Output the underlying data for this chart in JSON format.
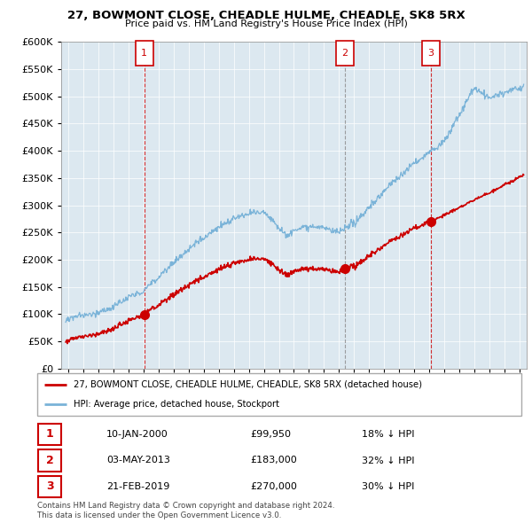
{
  "title": "27, BOWMONT CLOSE, CHEADLE HULME, CHEADLE, SK8 5RX",
  "subtitle": "Price paid vs. HM Land Registry's House Price Index (HPI)",
  "hpi_label": "HPI: Average price, detached house, Stockport",
  "property_label": "27, BOWMONT CLOSE, CHEADLE HULME, CHEADLE, SK8 5RX (detached house)",
  "footnote1": "Contains HM Land Registry data © Crown copyright and database right 2024.",
  "footnote2": "This data is licensed under the Open Government Licence v3.0.",
  "sales": [
    {
      "num": 1,
      "date": "10-JAN-2000",
      "price": 99950,
      "pct": "18% ↓ HPI",
      "x_year": 2000.03,
      "vline_style": "dashed_red"
    },
    {
      "num": 2,
      "date": "03-MAY-2013",
      "price": 183000,
      "pct": "32% ↓ HPI",
      "x_year": 2013.37,
      "vline_style": "dashed_gray"
    },
    {
      "num": 3,
      "date": "21-FEB-2019",
      "price": 270000,
      "pct": "30% ↓ HPI",
      "x_year": 2019.13,
      "vline_style": "dashed_red"
    }
  ],
  "hpi_color": "#7ab3d8",
  "price_color": "#cc0000",
  "grid_color": "#c8d8e8",
  "bg_color": "#dce8f0",
  "plot_bg": "#dce8f0",
  "ylim": [
    0,
    600000
  ],
  "xlim_start": 1994.5,
  "xlim_end": 2025.5,
  "yticks": [
    0,
    50000,
    100000,
    150000,
    200000,
    250000,
    300000,
    350000,
    400000,
    450000,
    500000,
    550000,
    600000
  ],
  "xticks": [
    1995,
    1996,
    1997,
    1998,
    1999,
    2000,
    2001,
    2002,
    2003,
    2004,
    2005,
    2006,
    2007,
    2008,
    2009,
    2010,
    2011,
    2012,
    2013,
    2014,
    2015,
    2016,
    2017,
    2018,
    2019,
    2020,
    2021,
    2022,
    2023,
    2024,
    2025
  ]
}
